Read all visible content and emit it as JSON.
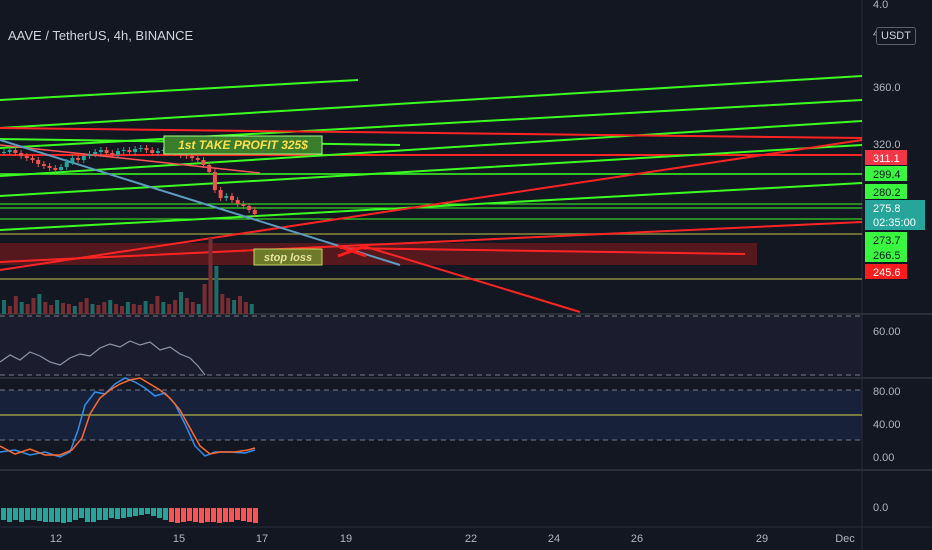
{
  "header": {
    "title": "AAVE / TetherUS, 4h, BINANCE",
    "currency": "USDT"
  },
  "chart_data": {
    "type": "candlestick",
    "price_axis": {
      "ticks": [
        "360.0",
        "320.0"
      ],
      "top_labels": [
        "4.0",
        "4"
      ]
    },
    "price_tags": [
      {
        "label": "311.1",
        "color": "#f23645"
      },
      {
        "label": "299.4",
        "color": "#22ab94"
      },
      {
        "label": "280.2",
        "color": "#22ab94"
      },
      {
        "label": "275.8",
        "color": "#22ab94"
      },
      {
        "label": "02:35:00",
        "color": "#22ab94"
      },
      {
        "label": "273.7",
        "color": "#22ab94"
      },
      {
        "label": "266.5",
        "color": "#22ab94"
      },
      {
        "label": "245.6",
        "color": "#f23645"
      }
    ],
    "annotations": {
      "take_profit": "1st TAKE PROFIT 325$",
      "stop_loss": "stop loss"
    },
    "x_axis_labels": [
      "12",
      "15",
      "17",
      "19",
      "22",
      "24",
      "26",
      "29",
      "Dec"
    ],
    "rsi": {
      "ticks": [
        "60.00"
      ]
    },
    "stoch": {
      "ticks": [
        "80.00",
        "40.00",
        "0.00"
      ]
    },
    "macd": {
      "ticks": [
        "0.0"
      ]
    },
    "colors": {
      "up": "#26a69a",
      "down": "#ef5350",
      "green_line": "#3cfd21",
      "red_line": "#ff1c1c",
      "background": "#131722"
    }
  }
}
